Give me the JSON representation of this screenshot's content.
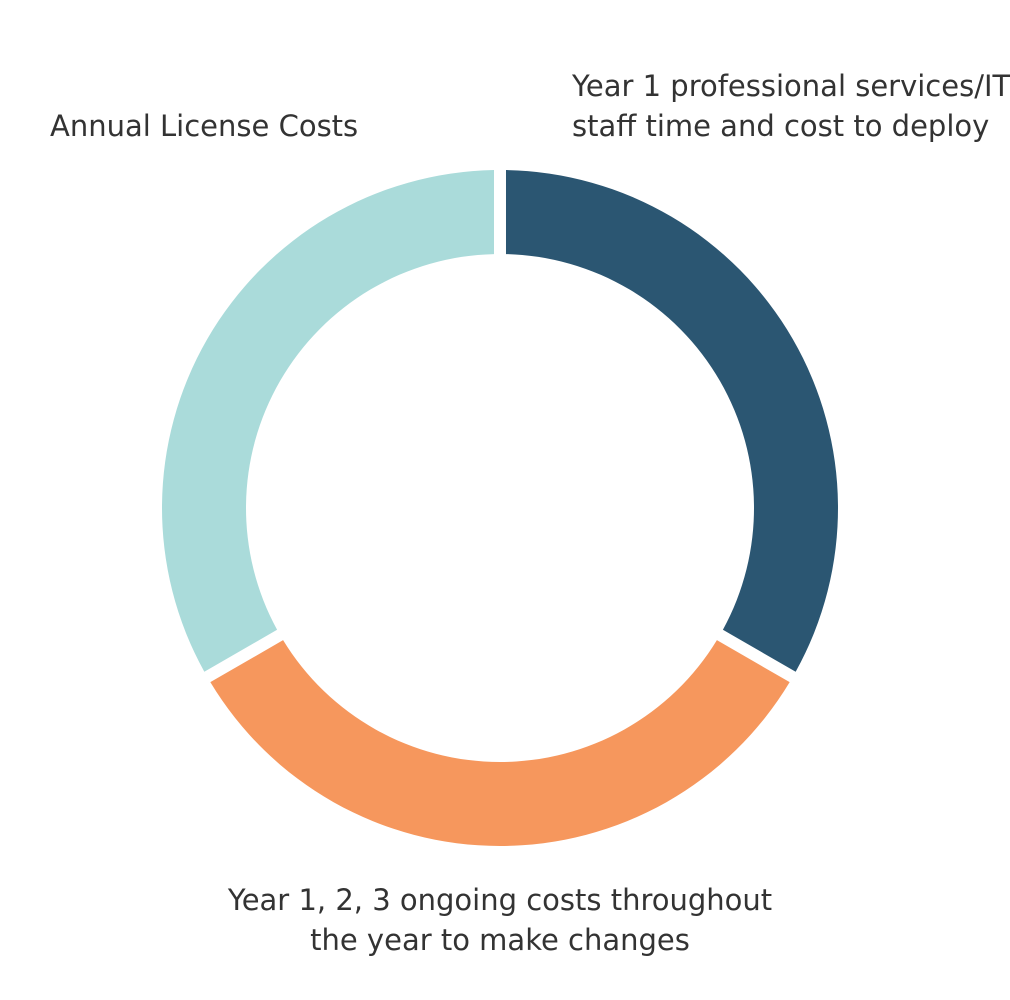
{
  "chart_data": {
    "type": "pie",
    "title": "",
    "start_angle_deg": 0,
    "direction": "counterclockwise",
    "series": [
      {
        "values": [
          {
            "label": "Annual License Costs",
            "label_lines": [
              "Annual License Costs"
            ],
            "value": 33.3,
            "color": "#aadbda"
          },
          {
            "label": "Year 1 professional services/IT staff time and cost to deploy",
            "label_lines": [
              "Year 1 professional services/IT",
              "staff time and cost to deploy"
            ],
            "value": 33.3,
            "color": "#f6975d"
          },
          {
            "label": "Year 1, 2, 3 ongoing costs throughout the year to make changes",
            "label_lines": [
              "Year 1, 2, 3 ongoing costs throughout",
              "the year to make changes"
            ],
            "value": 33.3,
            "color": "#2b5672"
          }
        ]
      }
    ],
    "legend": "none",
    "background": "#ffffff"
  }
}
